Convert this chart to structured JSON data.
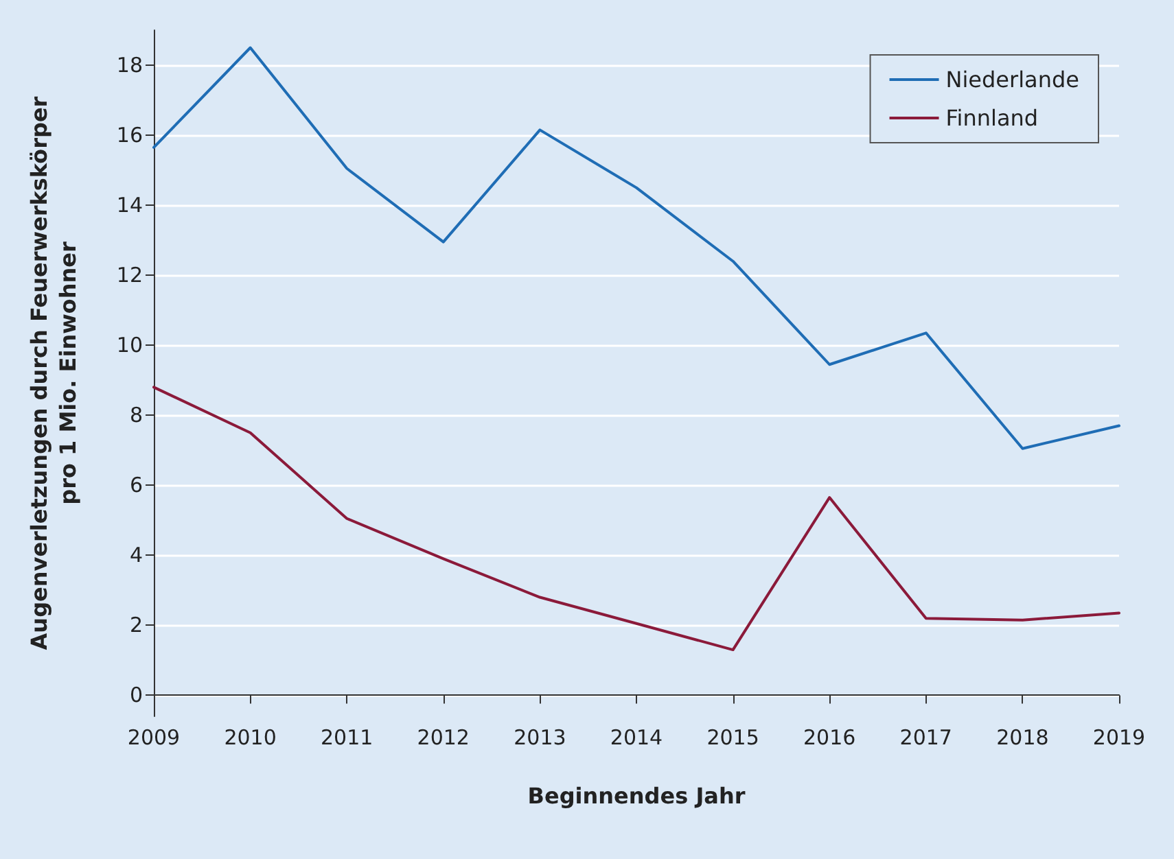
{
  "chart_data": {
    "type": "line",
    "xlabel": "Beginnendes Jahr",
    "ylabel": "Augenverletzungen durch Feuerwerkskörper\npro 1 Mio. Einwohner",
    "x": [
      2009,
      2010,
      2011,
      2012,
      2013,
      2014,
      2015,
      2016,
      2017,
      2018,
      2019
    ],
    "series": [
      {
        "name": "Niederlande",
        "color": "#1f6db5",
        "values": [
          15.65,
          18.5,
          15.05,
          12.95,
          16.15,
          14.5,
          12.4,
          9.45,
          10.35,
          7.05,
          7.7
        ]
      },
      {
        "name": "Finnland",
        "color": "#8b1a3a",
        "values": [
          8.8,
          7.5,
          5.05,
          3.9,
          2.8,
          2.05,
          1.3,
          5.65,
          2.2,
          2.15,
          2.35
        ]
      }
    ],
    "xlim": [
      2009,
      2019
    ],
    "xticks": [
      2009,
      2010,
      2011,
      2012,
      2013,
      2014,
      2015,
      2016,
      2017,
      2018,
      2019
    ],
    "ylim": [
      -0.6,
      19
    ],
    "yticks": [
      0,
      2,
      4,
      6,
      8,
      10,
      12,
      14,
      16,
      18
    ],
    "grid": "y",
    "legend": "top right",
    "marker": "none",
    "line_style": "solid"
  }
}
